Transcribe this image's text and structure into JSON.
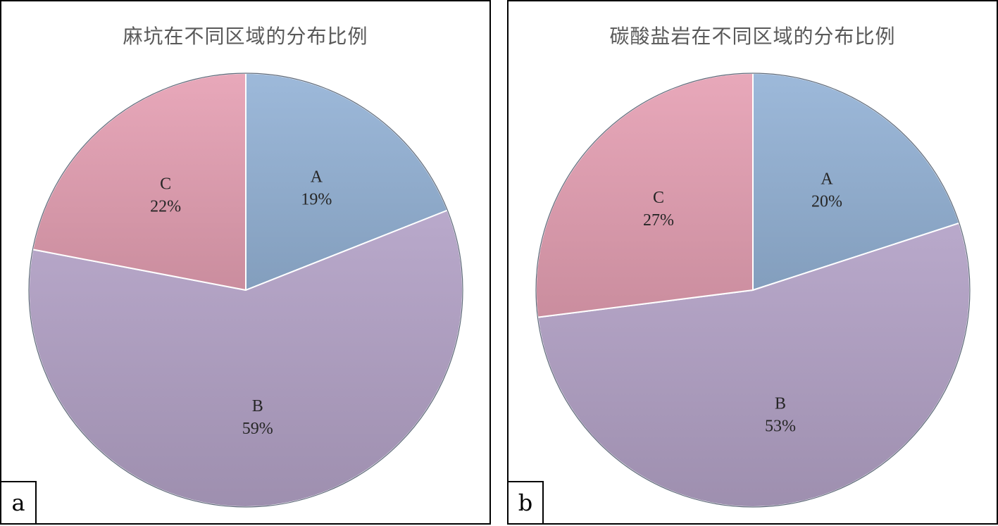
{
  "colors": {
    "A": "#95b3d7",
    "B": "#b3a2c7",
    "C": "#e6a0b4"
  },
  "chart_data": [
    {
      "type": "pie",
      "panel": "a",
      "title": "麻坑在不同区域的分布比例",
      "slices": [
        {
          "label": "A",
          "percent_label": "19%",
          "value": 19
        },
        {
          "label": "B",
          "percent_label": "59%",
          "value": 59
        },
        {
          "label": "C",
          "percent_label": "22%",
          "value": 22
        }
      ],
      "start_angle": "12 o'clock",
      "direction": "clockwise"
    },
    {
      "type": "pie",
      "panel": "b",
      "title": "碳酸盐岩在不同区域的分布比例",
      "slices": [
        {
          "label": "A",
          "percent_label": "20%",
          "value": 20
        },
        {
          "label": "B",
          "percent_label": "53%",
          "value": 53
        },
        {
          "label": "C",
          "percent_label": "27%",
          "value": 27
        }
      ],
      "start_angle": "12 o'clock",
      "direction": "clockwise"
    }
  ]
}
